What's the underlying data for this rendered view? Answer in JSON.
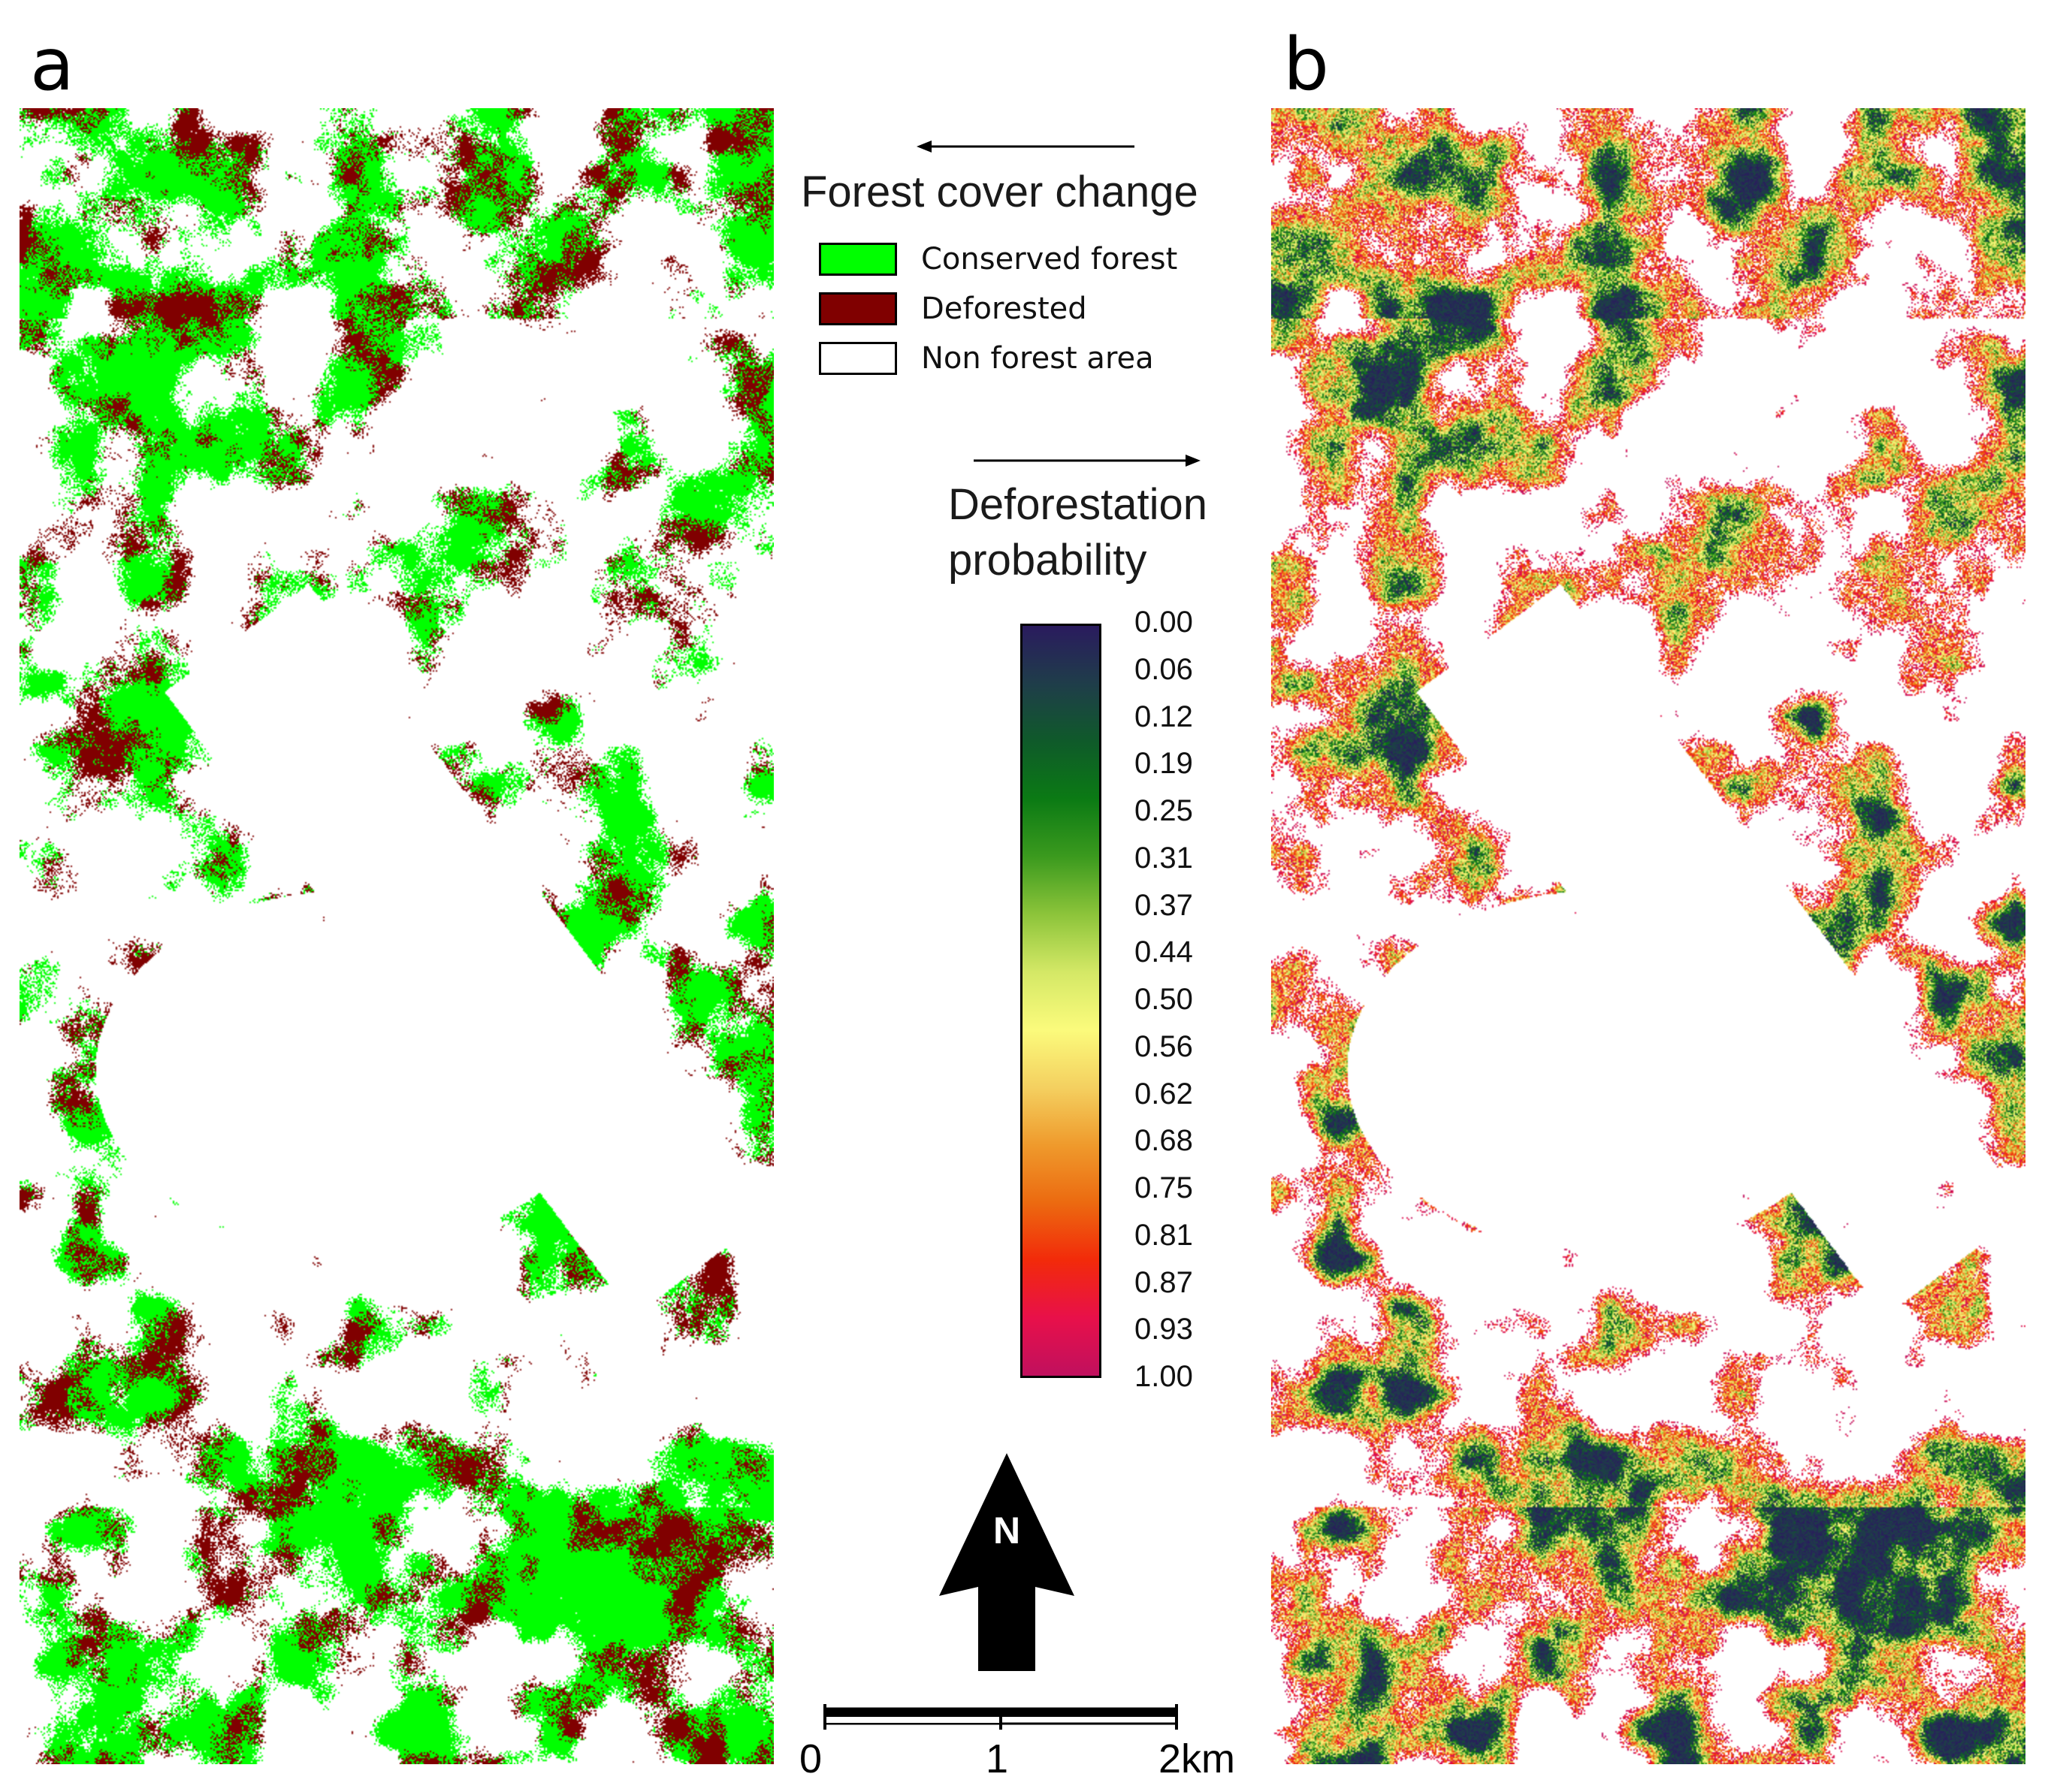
{
  "panels": [
    {
      "letter": "a"
    },
    {
      "letter": "b"
    }
  ],
  "legend_forest": {
    "title": "Forest cover change",
    "items": [
      {
        "label": "Conserved forest",
        "color": "#00ff00"
      },
      {
        "label": "Deforested",
        "color": "#800000"
      },
      {
        "label": "Non forest area",
        "color": "#ffffff"
      }
    ]
  },
  "legend_probability": {
    "title_line1": "Deforestation",
    "title_line2": "probability",
    "ticks": [
      "0.00",
      "0.06",
      "0.12",
      "0.19",
      "0.25",
      "0.31",
      "0.37",
      "0.44",
      "0.50",
      "0.56",
      "0.62",
      "0.68",
      "0.75",
      "0.81",
      "0.87",
      "0.93",
      "1.00"
    ],
    "gradient_colors": [
      "#2a1b5e",
      "#1f3d4a",
      "#0f5a2a",
      "#0b7a14",
      "#3b9a1e",
      "#8cc43a",
      "#d4e866",
      "#fbfb7c",
      "#f4d060",
      "#ef9a2c",
      "#ec6a10",
      "#f22a0a",
      "#e8104a",
      "#c0105e"
    ]
  },
  "north_arrow": {
    "letter": "N"
  },
  "scale_bar": {
    "labels": [
      "0",
      "1",
      "2km"
    ]
  }
}
